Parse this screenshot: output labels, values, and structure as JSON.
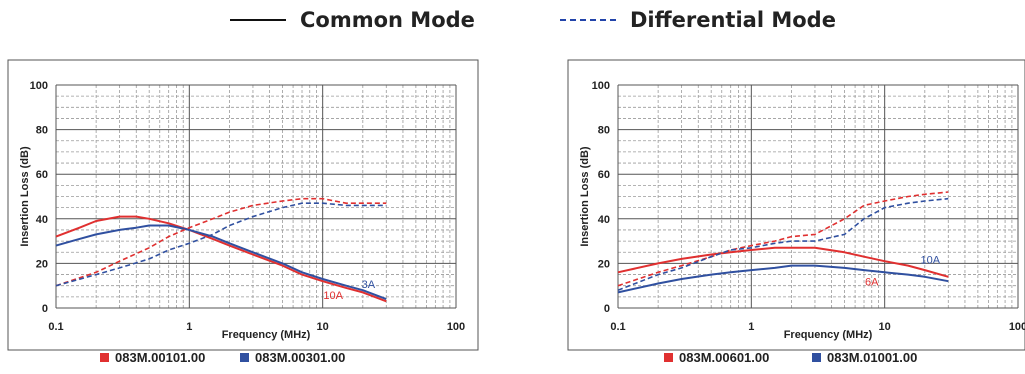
{
  "legend": {
    "common_mode": "Common Mode",
    "differential_mode": "Differential Mode",
    "common_color": "#111111",
    "differential_color": "#2244aa"
  },
  "chart_data": [
    {
      "type": "line",
      "xscale": "log",
      "xlim": [
        0.1,
        100
      ],
      "ylim": [
        0,
        100
      ],
      "xticks": [
        "0.1",
        "1",
        "10",
        "100"
      ],
      "yticks": [
        "0",
        "20",
        "40",
        "60",
        "80",
        "100"
      ],
      "xlabel": "Frequency (MHz)",
      "ylabel": "Insertion Loss (dB)",
      "grid": true,
      "legend": [
        {
          "name": "083M.00101.00",
          "color": "#e03030"
        },
        {
          "name": "083M.00301.00",
          "color": "#3050a0"
        }
      ],
      "series": [
        {
          "name": "083M.00101.00",
          "mode": "Common Mode",
          "color": "#e03030",
          "dash": false,
          "x": [
            0.1,
            0.15,
            0.2,
            0.3,
            0.4,
            0.5,
            0.7,
            1,
            1.5,
            2,
            3,
            5,
            7,
            10,
            15,
            20,
            30
          ],
          "y": [
            32,
            36,
            39,
            41,
            41,
            40,
            38,
            35,
            31,
            28,
            24,
            19,
            15,
            12,
            9,
            7,
            3
          ]
        },
        {
          "name": "083M.00301.00",
          "mode": "Common Mode",
          "color": "#3050a0",
          "dash": false,
          "x": [
            0.1,
            0.15,
            0.2,
            0.3,
            0.4,
            0.5,
            0.7,
            1,
            1.5,
            2,
            3,
            5,
            7,
            10,
            15,
            20,
            30
          ],
          "y": [
            28,
            31,
            33,
            35,
            36,
            37,
            37,
            35,
            32,
            29,
            25,
            20,
            16,
            13,
            10,
            8,
            4
          ]
        },
        {
          "name": "083M.00101.00",
          "mode": "Differential Mode",
          "color": "#e03030",
          "dash": true,
          "x": [
            0.1,
            0.2,
            0.3,
            0.5,
            0.7,
            1,
            1.5,
            2,
            3,
            5,
            7,
            10,
            15,
            20,
            30
          ],
          "y": [
            10,
            16,
            21,
            27,
            32,
            36,
            40,
            43,
            46,
            48,
            49,
            49,
            47,
            47,
            47
          ]
        },
        {
          "name": "083M.00301.00",
          "mode": "Differential Mode",
          "color": "#3050a0",
          "dash": true,
          "x": [
            0.1,
            0.2,
            0.3,
            0.5,
            0.7,
            1,
            1.5,
            2,
            3,
            5,
            7,
            10,
            15,
            20,
            30
          ],
          "y": [
            10,
            15,
            18,
            22,
            26,
            29,
            33,
            37,
            41,
            45,
            47,
            47,
            46,
            46,
            46
          ]
        }
      ],
      "annotations": [
        {
          "text": "3A",
          "x": 22,
          "y": 9,
          "color": "#3050a0"
        },
        {
          "text": "10A",
          "x": 12,
          "y": 4,
          "color": "#e03030"
        }
      ]
    },
    {
      "type": "line",
      "xscale": "log",
      "xlim": [
        0.1,
        100
      ],
      "ylim": [
        0,
        100
      ],
      "xticks": [
        "0.1",
        "1",
        "10",
        "100"
      ],
      "yticks": [
        "0",
        "20",
        "40",
        "60",
        "80",
        "100"
      ],
      "xlabel": "Frequency (MHz)",
      "ylabel": "Insertion Loss (dB)",
      "grid": true,
      "legend": [
        {
          "name": "083M.00601.00",
          "color": "#e03030"
        },
        {
          "name": "083M.01001.00",
          "color": "#3050a0"
        }
      ],
      "series": [
        {
          "name": "083M.00601.00",
          "mode": "Common Mode",
          "color": "#e03030",
          "dash": false,
          "x": [
            0.1,
            0.2,
            0.3,
            0.5,
            0.7,
            1,
            1.5,
            2,
            3,
            5,
            7,
            10,
            15,
            20,
            30
          ],
          "y": [
            16,
            20,
            22,
            24,
            25,
            26,
            27,
            27,
            27,
            25,
            23,
            21,
            19,
            17,
            14
          ]
        },
        {
          "name": "083M.01001.00",
          "mode": "Common Mode",
          "color": "#3050a0",
          "dash": false,
          "x": [
            0.1,
            0.2,
            0.3,
            0.5,
            0.7,
            1,
            1.5,
            2,
            3,
            5,
            7,
            10,
            15,
            20,
            30
          ],
          "y": [
            7,
            11,
            13,
            15,
            16,
            17,
            18,
            19,
            19,
            18,
            17,
            16,
            15,
            14,
            12
          ]
        },
        {
          "name": "083M.00601.00",
          "mode": "Differential Mode",
          "color": "#e03030",
          "dash": true,
          "x": [
            0.1,
            0.2,
            0.3,
            0.5,
            0.7,
            1,
            1.5,
            2,
            3,
            5,
            7,
            10,
            15,
            20,
            30
          ],
          "y": [
            10,
            16,
            19,
            23,
            26,
            28,
            30,
            32,
            33,
            40,
            46,
            48,
            50,
            51,
            52
          ]
        },
        {
          "name": "083M.01001.00",
          "mode": "Differential Mode",
          "color": "#3050a0",
          "dash": true,
          "x": [
            0.1,
            0.2,
            0.3,
            0.5,
            0.7,
            1,
            1.5,
            2,
            3,
            5,
            7,
            10,
            15,
            20,
            30
          ],
          "y": [
            8,
            15,
            18,
            23,
            26,
            27,
            29,
            30,
            30,
            33,
            40,
            45,
            47,
            48,
            49
          ]
        }
      ],
      "annotations": [
        {
          "text": "10A",
          "x": 22,
          "y": 20,
          "color": "#3050a0"
        },
        {
          "text": "6A",
          "x": 8,
          "y": 10,
          "color": "#e03030"
        }
      ]
    }
  ]
}
